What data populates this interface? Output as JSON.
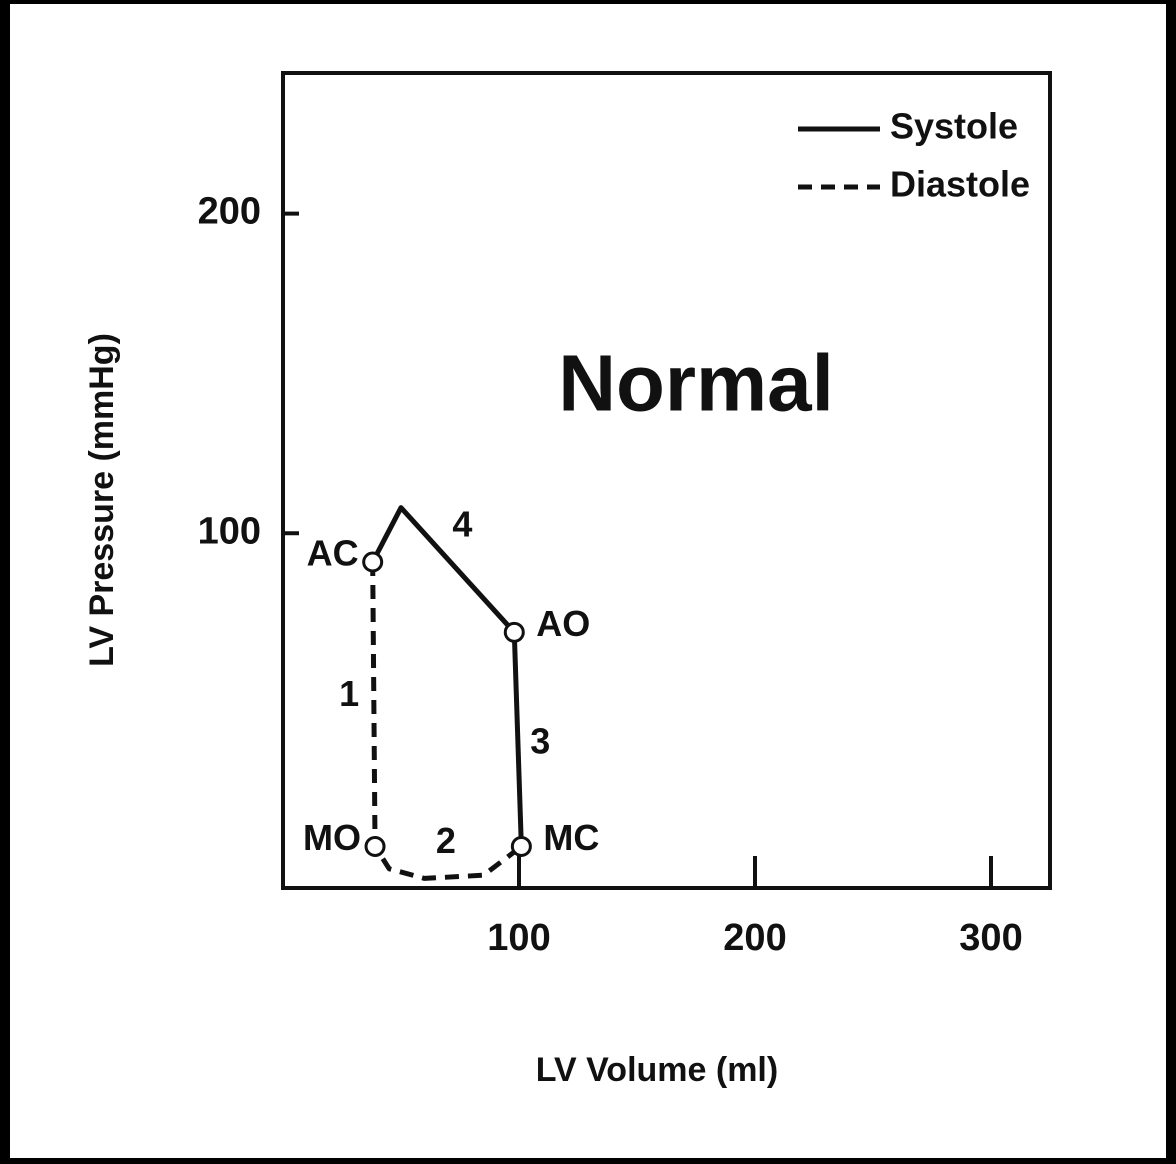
{
  "chart_data": {
    "type": "line",
    "xlabel": "LV Volume (ml)",
    "ylabel": "LV Pressure (mmHg)",
    "xlim": [
      0,
      325
    ],
    "ylim": [
      -11,
      244
    ],
    "xticks": [
      100,
      200,
      300
    ],
    "yticks": [
      100,
      200
    ],
    "legend": "upper right",
    "series": [
      {
        "name": "Systole",
        "color": "#111111",
        "style": "solid",
        "x": [
          38,
          50,
          98,
          101
        ],
        "values": [
          91,
          108,
          69,
          2
        ]
      },
      {
        "name": "Diastole",
        "color": "#111111",
        "style": "dashed",
        "x": [
          38,
          39,
          45,
          60,
          85,
          101
        ],
        "values": [
          91,
          2,
          -5,
          -8,
          -7,
          2
        ]
      }
    ],
    "points": [
      {
        "label": "AC",
        "x": 38,
        "y": 91
      },
      {
        "label": "AO",
        "x": 98,
        "y": 69
      },
      {
        "label": "MO",
        "x": 39,
        "y": 2
      },
      {
        "label": "MC",
        "x": 101,
        "y": 2
      }
    ],
    "segment_labels": [
      {
        "label": "1",
        "x": 28,
        "y": 49
      },
      {
        "label": "2",
        "x": 69,
        "y": 3
      },
      {
        "label": "3",
        "x": 109,
        "y": 34
      },
      {
        "label": "4",
        "x": 76,
        "y": 102
      }
    ],
    "annotation": {
      "text": "Normal",
      "x": 175,
      "y": 145
    }
  }
}
